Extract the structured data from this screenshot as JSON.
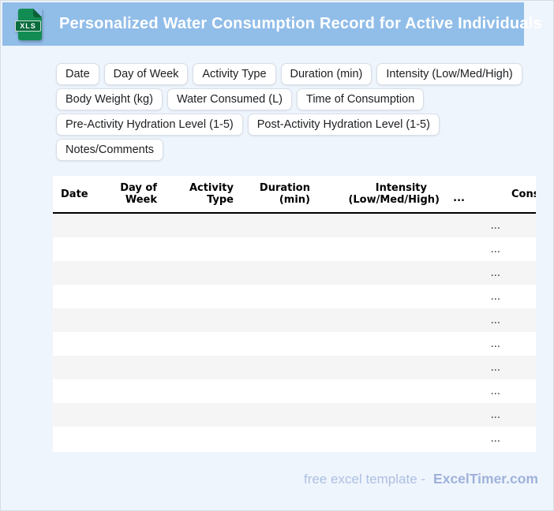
{
  "header": {
    "title": "Personalized Water Consumption Record for Active Individuals",
    "file_badge": "XLS"
  },
  "chips": [
    "Date",
    "Day of Week",
    "Activity Type",
    "Duration (min)",
    "Intensity (Low/Med/High)",
    "Body Weight (kg)",
    "Water Consumed (L)",
    "Time of Consumption",
    "Pre-Activity Hydration Level (1-5)",
    "Post-Activity Hydration Level (1-5)",
    "Notes/Comments"
  ],
  "table": {
    "columns": {
      "date": {
        "label": "Date"
      },
      "day_of_week": {
        "line1": "Day of",
        "line2": "Week"
      },
      "activity_type": {
        "line1": "Activity",
        "line2": "Type"
      },
      "duration": {
        "line1": "Duration",
        "line2": "(min)"
      },
      "intensity": {
        "line1": "Intensity",
        "line2": "(Low/Med/High)"
      },
      "more": {
        "label": "..."
      },
      "clipped": {
        "label": "Cons"
      }
    },
    "rows": [
      {
        "ellipsis": "..."
      },
      {
        "ellipsis": "..."
      },
      {
        "ellipsis": "..."
      },
      {
        "ellipsis": "..."
      },
      {
        "ellipsis": "..."
      },
      {
        "ellipsis": "..."
      },
      {
        "ellipsis": "..."
      },
      {
        "ellipsis": "..."
      },
      {
        "ellipsis": "..."
      },
      {
        "ellipsis": "..."
      }
    ]
  },
  "footer": {
    "text": "free excel template -",
    "brand": "ExcelTimer.com"
  },
  "colors": {
    "bar": "#91BDE9",
    "page_bg": "#EFF5FC",
    "icon": "#128C52",
    "band": "#0A6B3D",
    "row_alt": "#F5F5F5",
    "footer_text": "#ACBFE4",
    "footer_brand": "#9FB2DB"
  }
}
